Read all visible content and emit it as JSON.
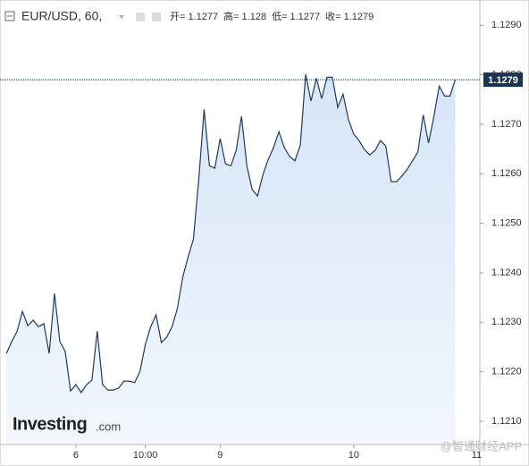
{
  "chart_data": {
    "type": "area",
    "title": "EUR/USD, 60,",
    "ohlc": [
      {
        "label": "开=",
        "value": 1.1277
      },
      {
        "label": "高=",
        "value": 1.128
      },
      {
        "label": "低=",
        "value": 1.1277
      },
      {
        "label": "收=",
        "value": 1.1279
      }
    ],
    "logo": "Investing",
    "logo_suffix": ".com",
    "watermark": "@智通财经APP",
    "x": [
      0,
      1,
      2,
      3,
      4,
      5,
      6,
      7,
      8,
      9,
      10,
      11,
      12,
      13,
      14,
      15,
      16,
      17,
      18,
      19,
      20,
      21,
      22,
      23,
      24,
      25,
      26,
      27,
      28,
      29,
      30,
      31,
      32,
      33,
      34,
      35,
      36,
      37,
      38,
      39,
      40,
      41,
      42,
      43,
      44,
      45,
      46,
      47,
      48,
      49,
      50,
      51,
      52,
      53,
      54,
      55,
      56,
      57,
      58,
      59,
      60,
      61,
      62,
      63,
      64,
      65,
      66,
      67,
      68,
      69,
      70,
      71,
      72,
      73,
      74,
      75,
      76,
      77,
      78,
      79,
      80,
      81,
      82,
      83,
      84
    ],
    "series": [
      {
        "name": "EUR/USD",
        "color": "#1e3a5f",
        "fill": "#dce9f8",
        "values": [
          1.12237,
          1.12261,
          1.12282,
          1.12322,
          1.12293,
          1.12304,
          1.12291,
          1.12297,
          1.12237,
          1.12358,
          1.12261,
          1.12241,
          1.12161,
          1.12174,
          1.12158,
          1.12174,
          1.12183,
          1.12282,
          1.12174,
          1.12163,
          1.12163,
          1.12167,
          1.12181,
          1.12181,
          1.12178,
          1.12201,
          1.12255,
          1.12291,
          1.12315,
          1.12259,
          1.1227,
          1.12291,
          1.12328,
          1.12391,
          1.12432,
          1.12468,
          1.12589,
          1.1273,
          1.12616,
          1.12611,
          1.12671,
          1.1262,
          1.12616,
          1.12647,
          1.12716,
          1.12616,
          1.12568,
          1.12555,
          1.12598,
          1.12629,
          1.12653,
          1.12685,
          1.12653,
          1.12635,
          1.12626,
          1.12658,
          1.12801,
          1.12747,
          1.12793,
          1.12752,
          1.12795,
          1.12795,
          1.12734,
          1.12761,
          1.1271,
          1.1268,
          1.12667,
          1.12649,
          1.12638,
          1.12647,
          1.12667,
          1.12656,
          1.12584,
          1.12584,
          1.12595,
          1.12609,
          1.12626,
          1.12644,
          1.12719,
          1.12662,
          1.12716,
          1.12777,
          1.12757,
          1.12757,
          1.1279
        ]
      }
    ],
    "last_price": 1.1279,
    "xlim": [
      -1.2,
      88.6
    ],
    "xticks": [
      {
        "value": 13,
        "label": "6"
      },
      {
        "value": 26,
        "label": "10:00"
      },
      {
        "value": 40,
        "label": "9"
      },
      {
        "value": 65,
        "label": "10"
      },
      {
        "value": 88,
        "label": "11"
      }
    ],
    "ylim": [
      1.12053,
      1.12951
    ],
    "yticks": [
      {
        "value": 1.121,
        "label": "1.1210"
      },
      {
        "value": 1.122,
        "label": "1.1220"
      },
      {
        "value": 1.123,
        "label": "1.1230"
      },
      {
        "value": 1.124,
        "label": "1.1240"
      },
      {
        "value": 1.125,
        "label": "1.1250"
      },
      {
        "value": 1.126,
        "label": "1.1260"
      },
      {
        "value": 1.127,
        "label": "1.1270"
      },
      {
        "value": 1.128,
        "label": "1.1280"
      },
      {
        "value": 1.129,
        "label": "1.1290"
      }
    ],
    "grid": false
  }
}
